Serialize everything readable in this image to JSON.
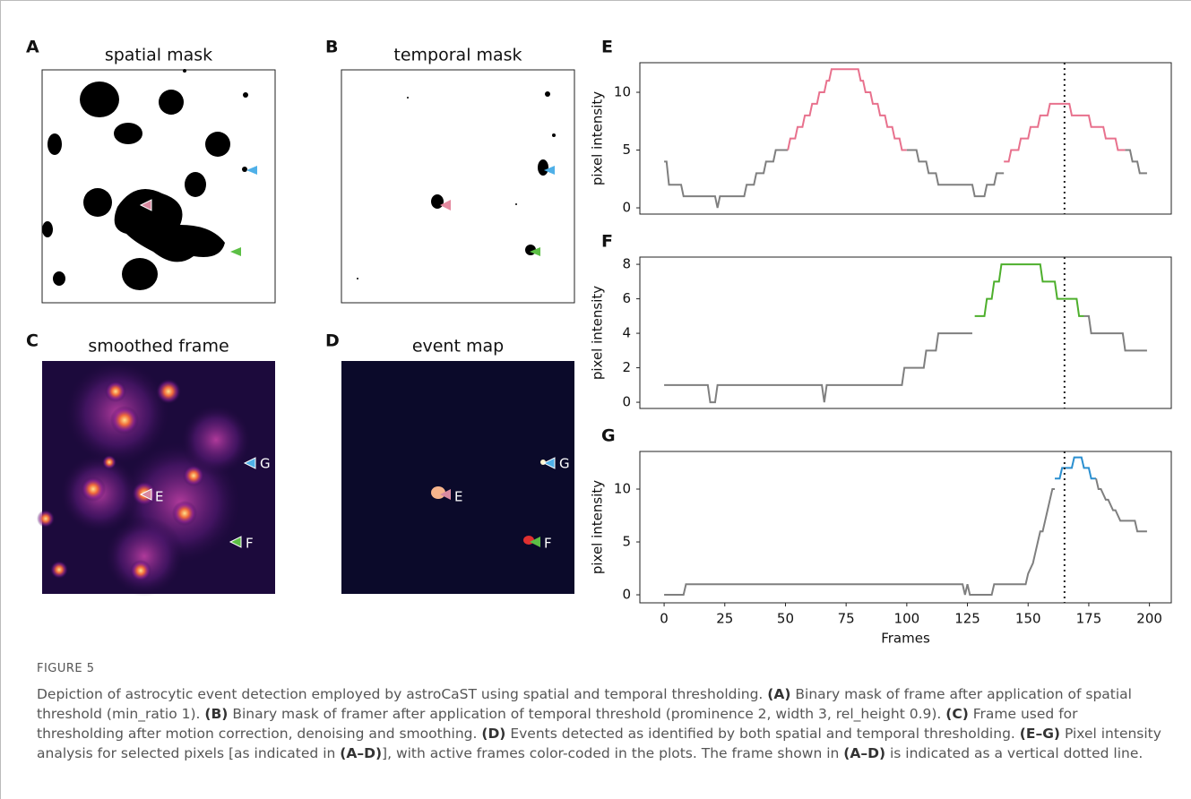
{
  "panels": [
    {
      "label": "A",
      "title": "spatial mask"
    },
    {
      "label": "B",
      "title": "temporal mask"
    },
    {
      "label": "C",
      "title": "smoothed frame",
      "marker_labels": [
        "G",
        "E",
        "F"
      ]
    },
    {
      "label": "D",
      "title": "event map",
      "marker_labels": [
        "G",
        "E",
        "F"
      ]
    }
  ],
  "chart_data": [
    {
      "type": "line",
      "label": "E",
      "ylabel": "pixel intensity",
      "xlim": [
        -10,
        209
      ],
      "ylim": [
        -0.54,
        12.56
      ],
      "yticks": [
        0,
        5,
        10
      ],
      "vline_x": 165,
      "series": [
        {
          "color": "#7f7f7f",
          "x": [
            0,
            1,
            2,
            7,
            8,
            21,
            22,
            23,
            33,
            34,
            37,
            38,
            41,
            42,
            45,
            46,
            51
          ],
          "values": [
            4,
            4,
            2,
            2,
            1,
            1,
            0,
            1,
            1,
            2,
            2,
            3,
            3,
            4,
            4,
            5,
            5
          ]
        },
        {
          "color": "#e8718d",
          "x": [
            51,
            52,
            54,
            55,
            57,
            58,
            60,
            61,
            63,
            64,
            66,
            67,
            68,
            69,
            70,
            80,
            81,
            82,
            83,
            85,
            86,
            88,
            89,
            91,
            92,
            94,
            95,
            97,
            98,
            100
          ],
          "values": [
            5,
            6,
            6,
            7,
            7,
            8,
            8,
            9,
            9,
            10,
            10,
            11,
            11,
            12,
            12,
            12,
            11,
            11,
            10,
            10,
            9,
            9,
            8,
            8,
            7,
            7,
            6,
            6,
            5,
            5
          ]
        },
        {
          "color": "#7f7f7f",
          "x": [
            100,
            104,
            105,
            108,
            109,
            112,
            113,
            127,
            128,
            132,
            133,
            136,
            137,
            140
          ],
          "values": [
            5,
            5,
            4,
            4,
            3,
            3,
            2,
            2,
            1,
            1,
            2,
            2,
            3,
            3
          ]
        },
        {
          "color": "#e8718d",
          "x": [
            140,
            142,
            143,
            146,
            147,
            150,
            151,
            154,
            155,
            158,
            159,
            167,
            168,
            175,
            176,
            181,
            182,
            186,
            187,
            190
          ],
          "values": [
            4,
            4,
            5,
            5,
            6,
            6,
            7,
            7,
            8,
            8,
            9,
            9,
            8,
            8,
            7,
            7,
            6,
            6,
            5,
            5
          ]
        },
        {
          "color": "#7f7f7f",
          "x": [
            190,
            192,
            193,
            195,
            196,
            199
          ],
          "values": [
            5,
            5,
            4,
            4,
            3,
            3
          ]
        }
      ]
    },
    {
      "type": "line",
      "label": "F",
      "ylabel": "pixel intensity",
      "xlim": [
        -10,
        209
      ],
      "ylim": [
        -0.36,
        8.42
      ],
      "yticks": [
        0,
        2,
        4,
        6,
        8
      ],
      "vline_x": 165,
      "series": [
        {
          "color": "#7f7f7f",
          "x": [
            0,
            18,
            19,
            21,
            22,
            23,
            65,
            66,
            67,
            98,
            99,
            107,
            108,
            112,
            113,
            127
          ],
          "values": [
            1,
            1,
            0,
            0,
            1,
            1,
            1,
            0,
            1,
            1,
            2,
            2,
            3,
            3,
            4,
            4
          ]
        },
        {
          "color": "#4daf2c",
          "x": [
            128,
            132,
            133,
            135,
            136,
            138,
            139,
            155,
            156,
            161,
            162,
            170,
            171,
            173
          ],
          "values": [
            5,
            5,
            6,
            6,
            7,
            7,
            8,
            8,
            7,
            7,
            6,
            6,
            5,
            5
          ]
        },
        {
          "color": "#7f7f7f",
          "x": [
            173,
            175,
            176,
            189,
            190,
            199
          ],
          "values": [
            5,
            5,
            4,
            4,
            3,
            3
          ]
        }
      ]
    },
    {
      "type": "line",
      "label": "G",
      "ylabel": "pixel intensity",
      "xlabel": "Frames",
      "xlim": [
        -10,
        209
      ],
      "ylim": [
        -0.76,
        13.56
      ],
      "yticks": [
        0,
        5,
        10
      ],
      "xticks": [
        0,
        25,
        50,
        75,
        100,
        125,
        150,
        175,
        200
      ],
      "vline_x": 165,
      "series": [
        {
          "color": "#7f7f7f",
          "x": [
            0,
            8,
            9,
            123,
            124,
            125,
            126,
            135,
            136,
            149,
            150,
            152,
            153,
            154,
            155,
            156,
            157,
            158,
            159,
            160,
            161
          ],
          "values": [
            0,
            0,
            1,
            1,
            0,
            1,
            0,
            0,
            1,
            1,
            2,
            3,
            4,
            5,
            6,
            6,
            7,
            8,
            9,
            10,
            10
          ]
        },
        {
          "color": "#2a8fd0",
          "x": [
            161,
            163,
            164,
            168,
            169,
            172,
            173,
            175,
            176,
            178
          ],
          "values": [
            11,
            11,
            12,
            12,
            13,
            13,
            12,
            12,
            11,
            11
          ]
        },
        {
          "color": "#7f7f7f",
          "x": [
            178,
            179,
            180,
            182,
            183,
            185,
            186,
            188,
            189,
            194,
            195,
            199
          ],
          "values": [
            11,
            10,
            10,
            9,
            9,
            8,
            8,
            7,
            7,
            7,
            6,
            6
          ]
        }
      ]
    }
  ],
  "caption": {
    "figure": "FIGURE 5",
    "parts": [
      "Depiction of astrocytic event detection employed by astroCaST using spatial and temporal thresholding.",
      "(A)",
      "Binary mask of frame after application of spatial threshold (min_ratio 1).",
      "(B)",
      "Binary mask of framer after application of temporal threshold (prominence 2, width 3, rel_height 0.9).",
      "(C)",
      "Frame used for thresholding after motion correction, denoising and smoothing.",
      "(D)",
      "Events detected as identified by both spatial and temporal thresholding.",
      "(E–G)",
      "Pixel intensity analysis for selected pixels [as indicated in",
      "(A–D)",
      "], with active frames color-coded in the plots. The frame shown in",
      "(A–D)",
      "is indicated as a vertical dotted line."
    ]
  }
}
